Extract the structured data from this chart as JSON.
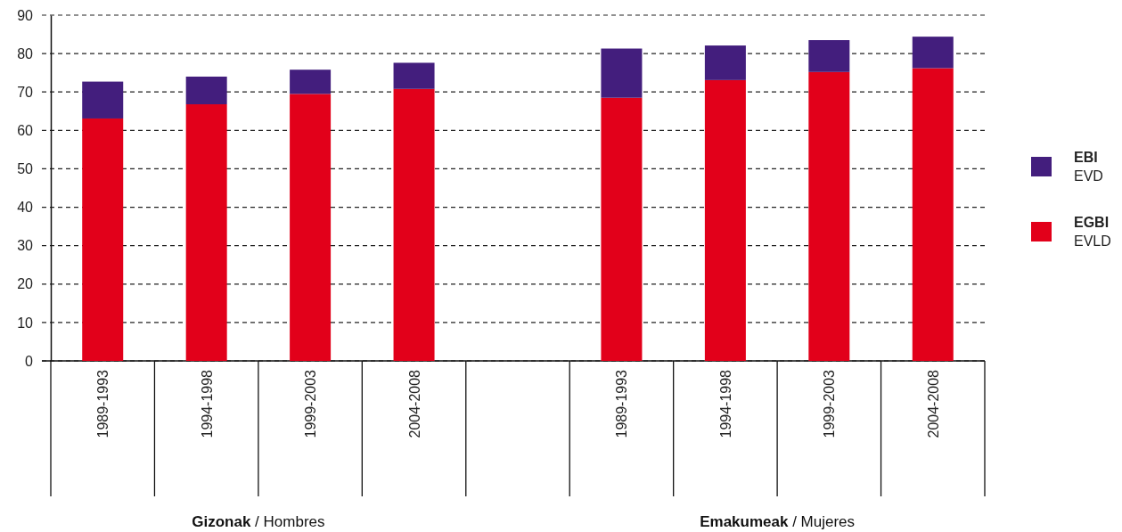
{
  "chart_data": {
    "type": "bar",
    "stacked": true,
    "categories": [
      "1989-1993",
      "1994-1998",
      "1999-2003",
      "2004-2008",
      null,
      "1989-1993",
      "1994-1998",
      "1999-2003",
      "2004-2008"
    ],
    "series": [
      {
        "name": "EGBI\nEVLD",
        "color": "#e2001a",
        "values": [
          63.1,
          66.8,
          69.5,
          70.8,
          null,
          68.5,
          73.1,
          75.2,
          76.2
        ]
      },
      {
        "name": "EBI\nEVD",
        "color": "#431e7d",
        "values": [
          9.6,
          7.2,
          6.3,
          6.8,
          null,
          12.8,
          9.0,
          8.3,
          8.2
        ]
      }
    ],
    "ylim": [
      0,
      90
    ],
    "yticks": [
      0,
      10,
      20,
      30,
      40,
      50,
      60,
      70,
      80,
      90
    ],
    "grid": "y",
    "legend": "right",
    "annotations": [
      "Gizonak / Hombres",
      "Emakumeak / Mujeres"
    ]
  }
}
